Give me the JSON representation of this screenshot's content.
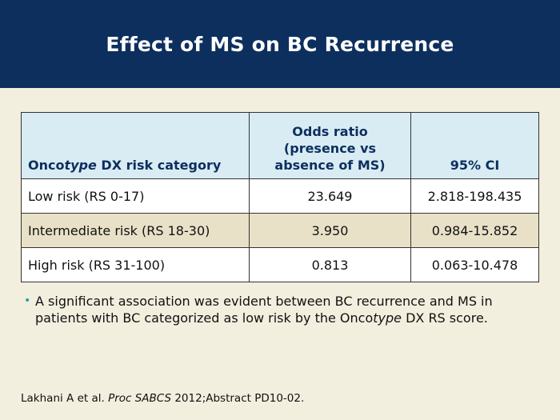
{
  "slide": {
    "title": "Effect of MS on BC Recurrence"
  },
  "table": {
    "header": {
      "col0_prefix": "Onco",
      "col0_italic": "type",
      "col0_suffix": " DX risk category",
      "col1_line1": "Odds ratio",
      "col1_line2": "(presence vs",
      "col1_line3": "absence of MS)",
      "col2": "95% CI"
    },
    "rows": [
      {
        "category": "Low risk (RS 0-17)",
        "odds_ratio": "23.649",
        "ci": "2.818-198.435"
      },
      {
        "category": "Intermediate risk (RS 18-30)",
        "odds_ratio": "3.950",
        "ci": "0.984-15.852"
      },
      {
        "category": "High risk (RS 31-100)",
        "odds_ratio": "0.813",
        "ci": "0.063-10.478"
      }
    ],
    "colors": {
      "header_bg": "#d9ecf4",
      "header_text": "#0d2f5e",
      "row_alt_bg": "#e8e1c8"
    }
  },
  "bullet": {
    "text_part1": "A significant association was evident between BC recurrence and MS in patients with BC categorized as low risk by the Onco",
    "text_italic": "type",
    "text_part2": " DX RS score."
  },
  "citation": {
    "authors": "Lakhani A et al. ",
    "journal": "Proc SABCS",
    "rest": " 2012;Abstract PD10-02."
  },
  "colors": {
    "title_bar": "#0d2f5e",
    "background": "#f3efdf",
    "bullet_dot": "#2aa0a0"
  }
}
